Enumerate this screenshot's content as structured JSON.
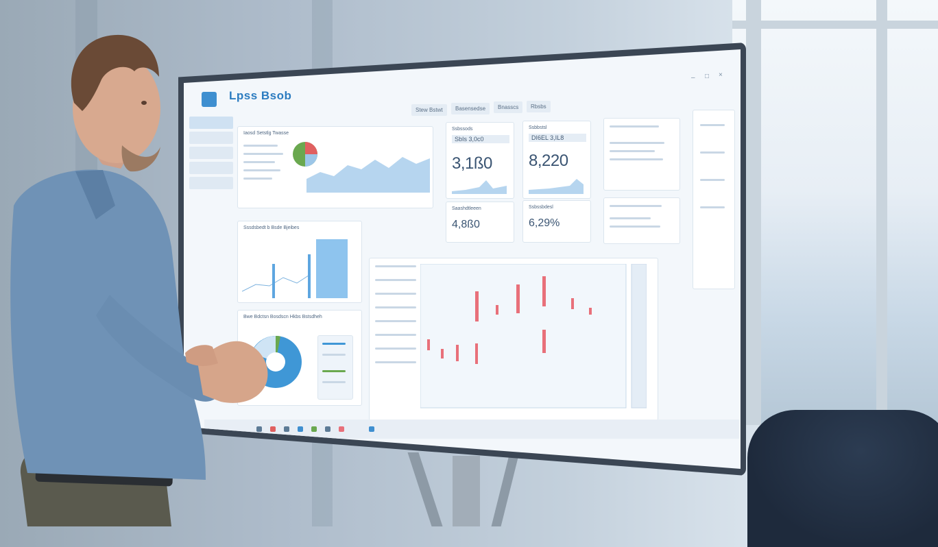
{
  "app": {
    "title": "Lpss Bsob"
  },
  "header": {
    "tabs": [
      "Stew Bstwt",
      "Basensedse",
      "Bnasscs",
      "Rbsbs"
    ]
  },
  "panels": {
    "top_left": {
      "title": "Iaosd Setstlg Twasse"
    },
    "kpi_1": {
      "label": "Ssbssods",
      "box": "SbIs 3,0c0",
      "value": "3,1ß0"
    },
    "kpi_2": {
      "label": "Ssbbstsl",
      "box": "DI6EL 3,IL8",
      "value": "8,220"
    },
    "kpi_3": {
      "label": "Saashdtleeen",
      "value": "4,8ß0"
    },
    "kpi_4": {
      "label": "Ssbssbdesl",
      "value": "6,29%"
    },
    "mid_left": {
      "title": "Sssdsbedt b Bsde Bjeibes"
    },
    "bottom_left": {
      "title": "Bwe Bdctsn Bosdscn Hkbs Bstsdheh"
    }
  },
  "colors": {
    "accent": "#3f8fd0",
    "pie_red": "#e06060",
    "pie_green": "#6aa84f",
    "candle_red": "#e8707a",
    "pie_blue": "#3f97d6"
  },
  "icons": [
    "logo-icon",
    "minimize-icon",
    "maximize-icon",
    "close-icon"
  ]
}
